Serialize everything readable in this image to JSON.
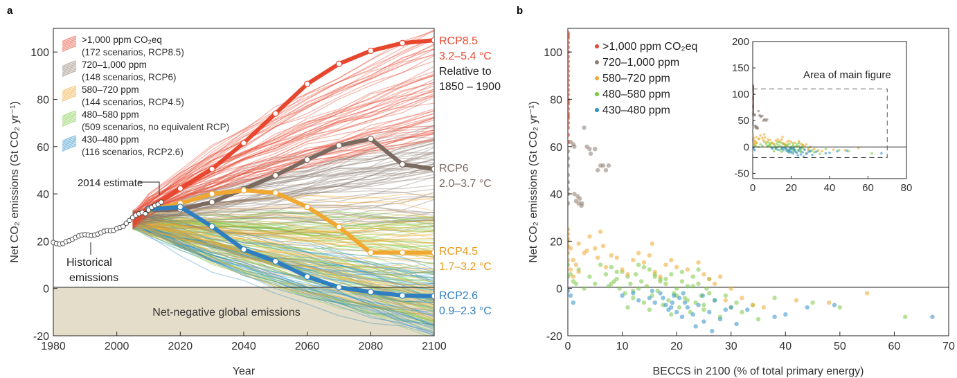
{
  "chart_data": [
    {
      "panel_label": "a",
      "type": "line",
      "xlabel": "Year",
      "ylabel": "Net CO₂ emissions (Gt CO₂ yr⁻¹)",
      "xlim": [
        1980,
        2100
      ],
      "ylim": [
        -20,
        110
      ],
      "xticks": [
        1980,
        2000,
        2020,
        2040,
        2060,
        2080,
        2100
      ],
      "yticks": [
        -20,
        0,
        20,
        40,
        60,
        80,
        100
      ],
      "shaded_region_label": "Net-negative global emissions",
      "legend_position": "top-left",
      "legend": [
        {
          "label": ">1,000 ppm CO₂eq",
          "sub": "(172 scenarios, RCP8.5)",
          "color": "#e8472f"
        },
        {
          "label": "720–1,000 ppm",
          "sub": "(148 scenarios, RCP6)",
          "color": "#8c7b70"
        },
        {
          "label": "580–720 ppm",
          "sub": "(144 scenarios, RCP4.5)",
          "color": "#f0a830"
        },
        {
          "label": "480–580 ppm",
          "sub": "(509 scenarios, no equivalent RCP)",
          "color": "#7ac943"
        },
        {
          "label": "430–480 ppm",
          "sub": "(116 scenarios, RCP2.6)",
          "color": "#2f8fc9"
        }
      ],
      "annotations": {
        "estimate_2014": "2014 estimate",
        "historical_line1": "Historical",
        "historical_line2": "emissions",
        "rcp85_name": "RCP8.5",
        "rcp85_range": "3.2–5.4 °C",
        "relative_line1": "Relative to",
        "relative_line2": "1850 – 1900",
        "rcp6_name": "RCP6",
        "rcp6_range": "2.0–3.7 °C",
        "rcp45_name": "RCP4.5",
        "rcp45_range": "1.7–3.2 °C",
        "rcp26_name": "RCP2.6",
        "rcp26_range": "0.9–2.3 °C"
      },
      "historical": {
        "x": [
          1980,
          1981,
          1982,
          1983,
          1984,
          1985,
          1986,
          1987,
          1988,
          1989,
          1990,
          1991,
          1992,
          1993,
          1994,
          1995,
          1996,
          1997,
          1998,
          1999,
          2000,
          2001,
          2002,
          2003,
          2004,
          2005,
          2006,
          2007,
          2008,
          2009,
          2010,
          2011,
          2012,
          2013,
          2014
        ],
        "y": [
          19.5,
          19.0,
          18.8,
          19.0,
          19.8,
          20.2,
          20.8,
          21.5,
          22.2,
          22.6,
          22.8,
          22.6,
          22.3,
          22.6,
          23.0,
          23.6,
          24.2,
          24.5,
          24.4,
          24.6,
          25.3,
          25.8,
          26.2,
          27.6,
          28.8,
          30.0,
          31.0,
          31.6,
          32.2,
          31.6,
          33.2,
          34.3,
          35.1,
          35.6,
          36.5
        ]
      },
      "series": [
        {
          "name": "RCP8.5",
          "color": "#e8472f",
          "x": [
            2010,
            2020,
            2030,
            2040,
            2050,
            2060,
            2070,
            2080,
            2090,
            2100
          ],
          "y": [
            33.5,
            42.3,
            50.5,
            61.5,
            74.0,
            86.5,
            95.0,
            100.5,
            103.8,
            105.0
          ]
        },
        {
          "name": "RCP6",
          "color": "#7a6a60",
          "x": [
            2010,
            2020,
            2030,
            2040,
            2050,
            2060,
            2070,
            2080,
            2090,
            2100
          ],
          "y": [
            33.0,
            33.5,
            36.5,
            42.0,
            47.8,
            54.5,
            60.5,
            63.3,
            52.5,
            50.5
          ]
        },
        {
          "name": "RCP4.5",
          "color": "#f0a830",
          "x": [
            2010,
            2020,
            2030,
            2040,
            2050,
            2060,
            2070,
            2080,
            2090,
            2100
          ],
          "y": [
            33.2,
            36.0,
            40.0,
            41.5,
            40.5,
            34.5,
            26.0,
            15.2,
            15.2,
            15.2
          ]
        },
        {
          "name": "RCP2.6",
          "color": "#2f7fc0",
          "x": [
            2010,
            2020,
            2030,
            2040,
            2050,
            2060,
            2070,
            2080,
            2090,
            2100
          ],
          "y": [
            33.5,
            34.5,
            26.2,
            16.5,
            11.5,
            5.0,
            0.5,
            -1.5,
            -3.0,
            -3.2
          ]
        }
      ],
      "scenario_bundles": [
        {
          "group": "480–580 ppm",
          "color": "#7ac943",
          "count": 509,
          "y2100_range": [
            -20,
            30
          ]
        },
        {
          "group": "430–480 ppm",
          "color": "#2f8fc9",
          "count": 116,
          "y2100_range": [
            -20,
            10
          ]
        },
        {
          "group": "580–720 ppm",
          "color": "#f0a830",
          "count": 144,
          "y2100_range": [
            -15,
            40
          ]
        },
        {
          "group": "720–1,000 ppm",
          "color": "#8c7b70",
          "count": 148,
          "y2100_range": [
            25,
            70
          ]
        },
        {
          "group": ">1,000 ppm CO₂eq",
          "color": "#e8472f",
          "count": 172,
          "y2100_range": [
            60,
            110
          ]
        }
      ]
    },
    {
      "panel_label": "b",
      "type": "scatter",
      "xlabel": "BECCS in 2100 (% of total primary energy)",
      "ylabel": "Net CO₂ emissions (Gt CO₂ yr⁻¹)",
      "xlim": [
        0,
        70
      ],
      "ylim": [
        -20,
        110
      ],
      "xticks": [
        0,
        10,
        20,
        30,
        40,
        50,
        60,
        70
      ],
      "yticks": [
        -20,
        0,
        20,
        40,
        60,
        80,
        100
      ],
      "legend_position": "top-left",
      "legend": [
        {
          "label": ">1,000 ppm CO₂eq",
          "color": "#e8472f"
        },
        {
          "label": "720–1,000 ppm",
          "color": "#8c7b70"
        },
        {
          "label": "580–720 ppm",
          "color": "#f0a830"
        },
        {
          "label": "480–580 ppm",
          "color": "#7ac943"
        },
        {
          "label": "430–480 ppm",
          "color": "#2f8fc9"
        }
      ],
      "points": {
        "gt1000": {
          "color": "#e8472f",
          "x": [
            0,
            0,
            0,
            0,
            0,
            0,
            0,
            0,
            0,
            0,
            0,
            0,
            0,
            0,
            0,
            0,
            0,
            0,
            0,
            0,
            0,
            0,
            0,
            0,
            0,
            0
          ],
          "y": [
            62,
            65,
            68,
            70,
            72,
            74,
            76,
            78,
            80,
            82,
            84,
            86,
            88,
            90,
            92,
            94,
            96,
            98,
            100,
            102,
            104,
            106,
            107,
            108,
            73,
            79
          ]
        },
        "p720": {
          "color": "#8c7b70",
          "x": [
            0,
            0,
            0,
            0,
            0,
            0,
            0,
            0,
            0.5,
            1,
            1.2,
            1.5,
            1.8,
            2.2,
            2.5,
            3,
            3.5,
            4,
            4.2,
            5,
            5.5,
            6,
            6.5,
            7,
            7.5,
            2,
            2.6,
            1.2
          ],
          "y": [
            42,
            45,
            48,
            52,
            55,
            58,
            40,
            36,
            62,
            61,
            40,
            37,
            39,
            38,
            35,
            68,
            60,
            59,
            57,
            59,
            50,
            52,
            52,
            50,
            52,
            36,
            36,
            60
          ]
        },
        "p580": {
          "color": "#f0a830",
          "x": [
            0,
            0,
            0,
            0,
            0.5,
            1,
            1.5,
            2,
            3,
            3.5,
            4,
            5,
            5.5,
            6,
            6.5,
            7,
            8,
            9,
            10,
            11,
            12,
            13,
            14,
            15,
            15.5,
            16,
            17,
            18,
            19,
            20,
            22,
            24,
            25,
            26,
            27,
            28,
            29,
            30,
            32,
            34,
            36,
            42,
            48,
            55,
            0,
            0,
            0,
            0.5,
            1,
            2
          ],
          "y": [
            15,
            18,
            20,
            23,
            17,
            12,
            10,
            19,
            15,
            16,
            22,
            17,
            13,
            24,
            18,
            9,
            14,
            13,
            8,
            6,
            12,
            15,
            11,
            14,
            19,
            7,
            5,
            10,
            12,
            9,
            8,
            11,
            6,
            4,
            2,
            5,
            -5,
            0,
            -4,
            -7,
            -8,
            -5,
            -6,
            -2,
            25,
            21,
            12,
            8,
            5,
            7
          ]
        },
        "p480": {
          "color": "#7ac943",
          "x": [
            0,
            0,
            0.5,
            1,
            1.5,
            2,
            3,
            4,
            5,
            6,
            7,
            7.5,
            8,
            8.5,
            9,
            9.5,
            10,
            10.5,
            11,
            11.5,
            12,
            12.5,
            13,
            13.5,
            14,
            14.5,
            15,
            15.5,
            16,
            16.5,
            17,
            17.5,
            18,
            18.5,
            19,
            19.5,
            20,
            20.5,
            21,
            21.5,
            22,
            22.5,
            23,
            23.5,
            24,
            24.5,
            25,
            25.5,
            26,
            27,
            28,
            29,
            30,
            31,
            32,
            34,
            35,
            38,
            45,
            50,
            62,
            8,
            9,
            12,
            14,
            16,
            18,
            20,
            22,
            24,
            26,
            11,
            13,
            15,
            17,
            19,
            21,
            23,
            25
          ],
          "y": [
            10,
            5,
            6,
            3,
            2,
            8,
            0,
            5,
            2,
            10,
            6,
            1,
            9,
            3,
            4,
            0,
            7,
            -2,
            5,
            2,
            -4,
            6,
            0,
            3,
            -6,
            1,
            8,
            -3,
            5,
            -1,
            4,
            -7,
            2,
            -5,
            6,
            -2,
            0,
            -8,
            3,
            -4,
            1,
            -10,
            5,
            -6,
            2,
            -3,
            -9,
            0,
            4,
            -5,
            -12,
            -3,
            -8,
            -6,
            -10,
            -7,
            -13,
            -4,
            -6,
            -8,
            -12,
            2,
            7,
            -1,
            9,
            6,
            4,
            -3,
            -5,
            8,
            -2,
            -8,
            10,
            -9,
            3,
            -11,
            7,
            1,
            -7
          ]
        },
        "p430": {
          "color": "#2f8fc9",
          "x": [
            0,
            0.5,
            1,
            10,
            12,
            13,
            15,
            16,
            17,
            18,
            18.5,
            19,
            19.5,
            20,
            20.5,
            21,
            21.5,
            22,
            23,
            24,
            25,
            26,
            27,
            28,
            29,
            30,
            31,
            33,
            38,
            40,
            44,
            49,
            67,
            15.5,
            17.5,
            21.2,
            23.5,
            26.5,
            19.2,
            24.8
          ],
          "y": [
            -1,
            -3,
            -6,
            -3,
            -2,
            -5,
            -4,
            -6,
            -2,
            -7,
            -9,
            -8,
            -3,
            -10,
            -4,
            -12,
            -6,
            -8,
            -11,
            -7,
            -14,
            -10,
            -5,
            -13,
            -9,
            -8,
            -15,
            -9,
            -12,
            -11,
            -8,
            -7,
            -12,
            -1,
            -4,
            -2,
            -16,
            -18,
            -6,
            -3
          ]
        }
      },
      "inset": {
        "label": "Area of main figure",
        "xlim": [
          0,
          80
        ],
        "ylim": [
          -60,
          200
        ],
        "xticks": [
          0,
          20,
          40,
          60,
          80
        ],
        "yticks": [
          -50,
          0,
          50,
          100,
          150,
          200
        ],
        "main_area_box": {
          "x": [
            0,
            70
          ],
          "y": [
            -20,
            110
          ]
        }
      }
    }
  ]
}
